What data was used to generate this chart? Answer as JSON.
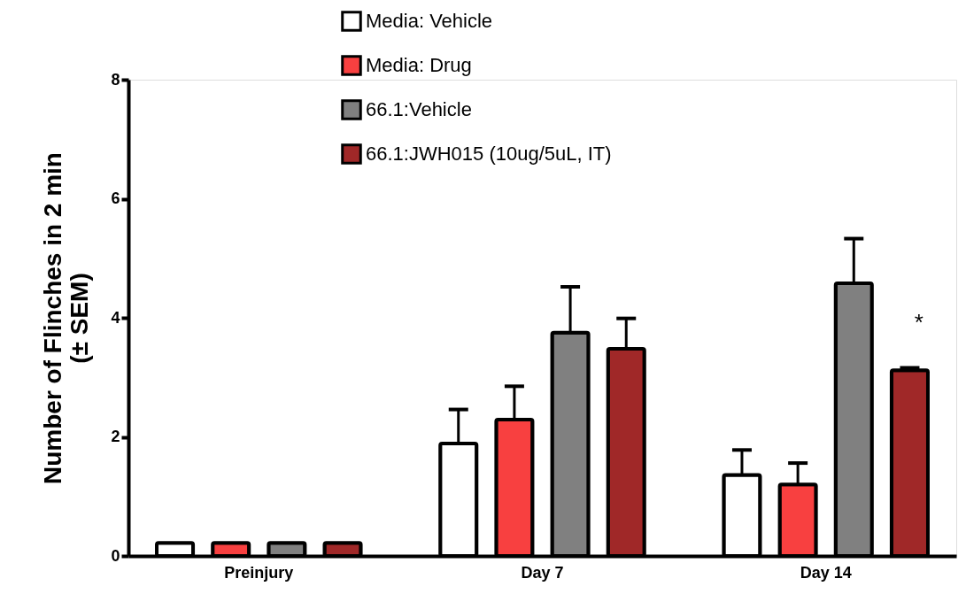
{
  "chart_data": {
    "type": "bar",
    "ylabel": "Number of Flinches  in 2 min\n(± SEM)",
    "categories": [
      "Preinjury",
      "Day 7",
      "Day 14"
    ],
    "series": [
      {
        "name": "Media: Vehicle",
        "color": "#ffffff",
        "values": [
          0.22,
          1.89,
          1.36
        ],
        "errors": [
          null,
          0.57,
          0.42
        ]
      },
      {
        "name": "Media:  Drug",
        "color": "#f84040",
        "values": [
          0.22,
          2.29,
          1.2
        ],
        "errors": [
          null,
          0.56,
          0.36
        ]
      },
      {
        "name": "66.1:Vehicle",
        "color": "#808080",
        "values": [
          0.22,
          3.75,
          4.58
        ],
        "errors": [
          null,
          0.77,
          0.75
        ]
      },
      {
        "name": "66.1:JWH015 (10ug/5uL, IT)",
        "color": "#a02828",
        "values": [
          0.22,
          3.48,
          3.12
        ],
        "errors": [
          null,
          0.51,
          0.04
        ]
      }
    ],
    "ylim": [
      0,
      8
    ],
    "yticks": [
      0,
      2,
      4,
      6,
      8
    ],
    "grid": false,
    "legend": "top",
    "annotations": [
      "*"
    ]
  }
}
